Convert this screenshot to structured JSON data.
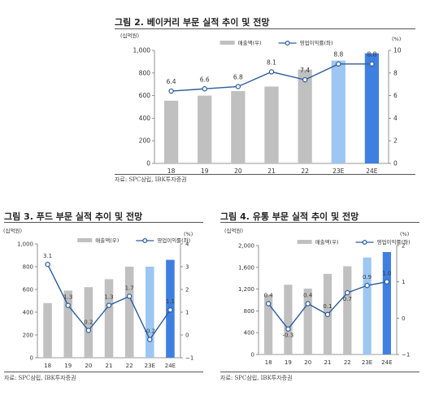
{
  "figures": [
    {
      "title": "그림 2. 베이커리 부문 실적 추이 및 전망",
      "source": "자료: SPC삼립, IBK투자증권",
      "left_unit": "(십억원)",
      "right_unit": "(%)",
      "legend_bar": "매출액(우)",
      "legend_line": "영업이익률(좌)"
    },
    {
      "title": "그림 3. 푸드 부문 실적 추이 및 전망",
      "source": "자료: SPC삼립, IBK투자증권",
      "left_unit": "(십억원)",
      "right_unit": "(%)",
      "legend_bar": "매출액(우)",
      "legend_line": "영업이익률(좌)"
    },
    {
      "title": "그림 4. 유통 부문 실적 추이 및 전망",
      "source": "자료: SPC삼립, IBK투자증권",
      "left_unit": "(십억원)",
      "right_unit": "(%)",
      "legend_bar": "매출액(우)",
      "legend_line": "영업이익률(좌)"
    }
  ],
  "chart_data": [
    {
      "type": "bar",
      "title": "그림 2. 베이커리 부문 실적 추이 및 전망",
      "categories": [
        "18",
        "19",
        "20",
        "21",
        "22",
        "23E",
        "24E"
      ],
      "series": [
        {
          "name": "매출액(우)",
          "axis": "left",
          "type": "bar",
          "values": [
            555,
            600,
            640,
            680,
            830,
            910,
            975
          ]
        },
        {
          "name": "영업이익률(좌)",
          "axis": "right",
          "type": "line",
          "values": [
            6.4,
            6.6,
            6.8,
            8.1,
            7.4,
            8.8,
            8.8
          ],
          "labels": [
            "6.4",
            "6.6",
            "6.8",
            "8.1",
            "7.4",
            "8.8",
            "8.8"
          ]
        }
      ],
      "ylim_left": [
        0,
        1000
      ],
      "yticks_left": [
        "0",
        "200",
        "400",
        "600",
        "800",
        "1,000"
      ],
      "ylim_right": [
        0,
        10
      ],
      "yticks_right": [
        "0",
        "2",
        "4",
        "6",
        "8",
        "10"
      ],
      "bar_colors": [
        "#c0c0c0",
        "#c0c0c0",
        "#c0c0c0",
        "#c0c0c0",
        "#c0c0c0",
        "#9dc6f2",
        "#3f7fe0"
      ],
      "line_color": "#2c5c9e",
      "grid": false,
      "legend_position": "top"
    },
    {
      "type": "bar",
      "title": "그림 3. 푸드 부문 실적 추이 및 전망",
      "categories": [
        "18",
        "19",
        "20",
        "21",
        "22",
        "23E",
        "24E"
      ],
      "series": [
        {
          "name": "매출액(우)",
          "axis": "left",
          "type": "bar",
          "values": [
            480,
            590,
            620,
            690,
            800,
            800,
            860
          ]
        },
        {
          "name": "영업이익률(좌)",
          "axis": "right",
          "type": "line",
          "values": [
            3.1,
            1.3,
            0.2,
            1.3,
            1.7,
            -0.2,
            1.1
          ],
          "labels": [
            "3.1",
            "1.3",
            "0.2",
            "1.3",
            "1.7",
            "-0.2",
            "1.1"
          ]
        }
      ],
      "ylim_left": [
        0,
        1000
      ],
      "yticks_left": [
        "0",
        "200",
        "400",
        "600",
        "800",
        "1,000"
      ],
      "ylim_right": [
        -1,
        4
      ],
      "yticks_right": [
        "−1",
        "0",
        "1",
        "2",
        "3",
        "4"
      ],
      "bar_colors": [
        "#c0c0c0",
        "#c0c0c0",
        "#c0c0c0",
        "#c0c0c0",
        "#c0c0c0",
        "#9dc6f2",
        "#3f7fe0"
      ],
      "line_color": "#2c5c9e",
      "grid": false,
      "legend_position": "top"
    },
    {
      "type": "bar",
      "title": "그림 4. 유통 부문 실적 추이 및 전망",
      "categories": [
        "18",
        "19",
        "20",
        "21",
        "22",
        "23E",
        "24E"
      ],
      "series": [
        {
          "name": "매출액(우)",
          "axis": "left",
          "type": "bar",
          "values": [
            1100,
            1280,
            1210,
            1480,
            1620,
            1780,
            1880
          ]
        },
        {
          "name": "영업이익률(좌)",
          "axis": "right",
          "type": "line",
          "values": [
            0.4,
            -0.3,
            0.4,
            0.1,
            0.7,
            0.9,
            1.0
          ],
          "labels": [
            "0.4",
            "-0.3",
            "0.4",
            "0.1",
            "0.7",
            "0.9",
            "1.0"
          ]
        }
      ],
      "ylim_left": [
        0,
        2000
      ],
      "yticks_left": [
        "0",
        "400",
        "800",
        "1,200",
        "1,600",
        "2,000"
      ],
      "ylim_right": [
        -1,
        2
      ],
      "yticks_right": [
        "−1",
        "0",
        "1",
        "2"
      ],
      "bar_colors": [
        "#c0c0c0",
        "#c0c0c0",
        "#c0c0c0",
        "#c0c0c0",
        "#c0c0c0",
        "#9dc6f2",
        "#3f7fe0"
      ],
      "line_color": "#2c5c9e",
      "grid": false,
      "legend_position": "top"
    }
  ]
}
